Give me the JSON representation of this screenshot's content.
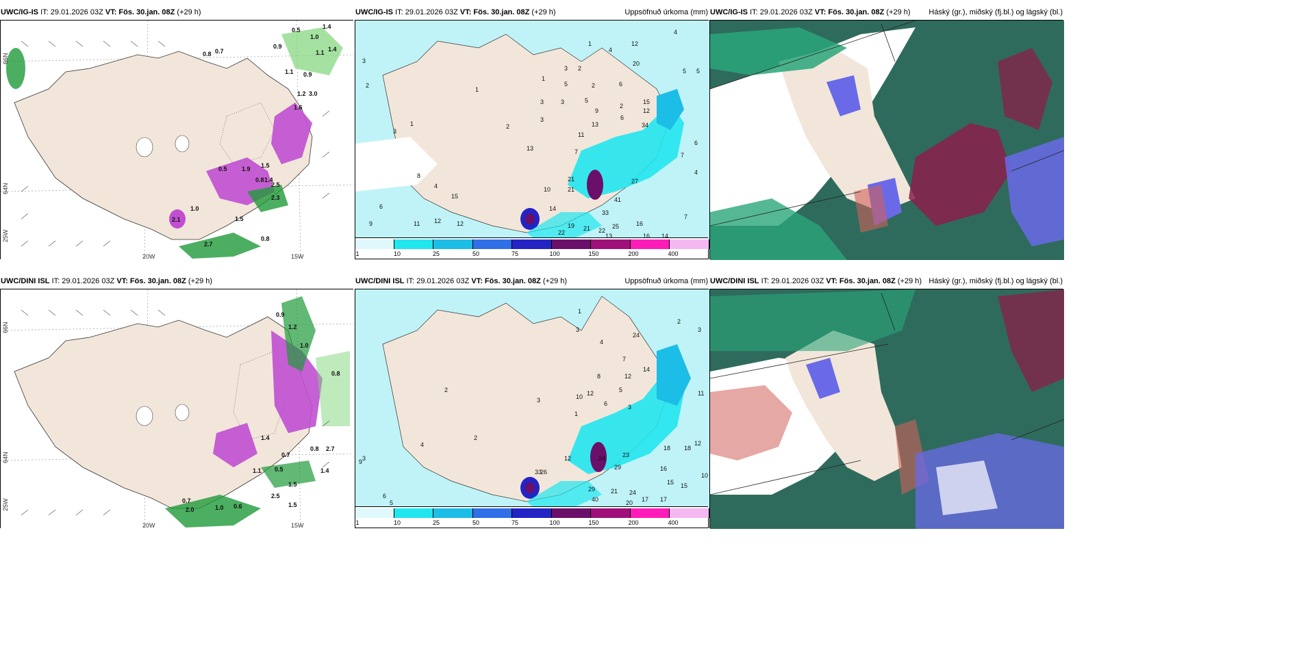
{
  "common": {
    "init": "IT: 29.01.2026 03Z",
    "vt_label": "VT:",
    "vt": "Fös. 30.jan. 08Z",
    "lead": "(+29 h)"
  },
  "rows": [
    {
      "model": "UWC/IG-IS"
    },
    {
      "model": "UWC/DINI ISL"
    }
  ],
  "precip_title": "Uppsöfnuð úrkoma (mm)",
  "cloud_title": "Háský (gr.), miðský (fj.bl.) og lágský (bl.)",
  "axis_ticks": {
    "lon_20": "20W",
    "lon_15": "15W",
    "lat_66": "66N",
    "lat_64": "64N",
    "lat_25": "25W"
  },
  "legend": {
    "labels": [
      "1",
      "10",
      "25",
      "50",
      "75",
      "100",
      "150",
      "200",
      "400"
    ],
    "colors": [
      "#dff8fb",
      "#22e6ee",
      "#1cbde6",
      "#2f6fe8",
      "#2424c4",
      "#6a0f6a",
      "#a0107a",
      "#ff1cb8",
      "#f4b8f0"
    ]
  },
  "colors": {
    "land": "#f2e6da",
    "ocean_precip": "#bff3f8",
    "snow_purple": "#c04fd0",
    "rain_green": "#1f9a3a",
    "cloud_high": "#6a6ae8",
    "cloud_mid": "#2aa67a",
    "cloud_low": "#8a1f4a"
  },
  "wind_labels_top": [
    "0.5",
    "1.0",
    "1.4",
    "1.1",
    "1.4",
    "0.9",
    "0.8",
    "0.7",
    "1.1",
    "0.9",
    "1.2",
    "3.0",
    "1.6",
    "1.9",
    "1.5",
    "1.4",
    "0.5",
    "0.8",
    "2.5",
    "2.3",
    "1.0",
    "2.1",
    "1.5",
    "0.8",
    "2.7"
  ],
  "wind_labels_bottom": [
    "0.9",
    "1.2",
    "1.0",
    "0.8",
    "1.4",
    "0.8",
    "0.5",
    "2.7",
    "1.4",
    "1.1",
    "0.7",
    "2.0",
    "1.0",
    "0.6",
    "2.5",
    "1.5",
    "0.7",
    "1.5"
  ],
  "precip_labels_top": [
    "4",
    "3",
    "1",
    "2",
    "4",
    "12",
    "20",
    "5",
    "5",
    "3",
    "2",
    "1",
    "5",
    "2",
    "6",
    "15",
    "3",
    "3",
    "5",
    "2",
    "1",
    "3",
    "9",
    "13",
    "34",
    "12",
    "6",
    "2",
    "1",
    "3",
    "7",
    "11",
    "8",
    "4",
    "13",
    "21",
    "10",
    "15",
    "21",
    "14",
    "27",
    "33",
    "41",
    "25",
    "16",
    "12",
    "9",
    "6",
    "11",
    "12",
    "22",
    "19",
    "21",
    "22",
    "16",
    "13",
    "7",
    "14",
    "4",
    "6",
    "7"
  ],
  "precip_labels_bottom": [
    "3",
    "2",
    "1",
    "3",
    "4",
    "7",
    "12",
    "8",
    "5",
    "24",
    "14",
    "12",
    "10",
    "6",
    "2",
    "3",
    "1",
    "3",
    "15",
    "17",
    "23",
    "18",
    "29",
    "26",
    "24",
    "21",
    "24",
    "17",
    "20",
    "16",
    "33",
    "29",
    "40",
    "15",
    "12",
    "10",
    "9",
    "5",
    "4",
    "6",
    "3",
    "2",
    "11",
    "12",
    "18"
  ]
}
